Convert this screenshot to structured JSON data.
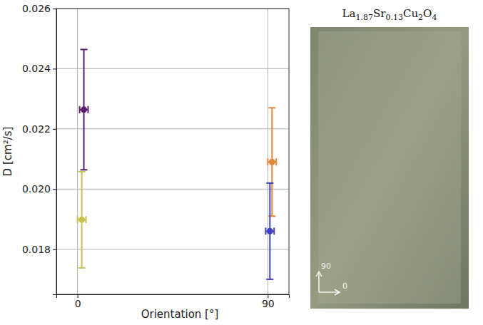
{
  "chart_data": {
    "type": "scatter",
    "x_label": "Orientation [°]",
    "y_label": "D [cm²/s]",
    "x": [
      3,
      2,
      92,
      91
    ],
    "x_errors": [
      2,
      2,
      2,
      2
    ],
    "values": [
      0.02264,
      0.01898,
      0.0209,
      0.0186
    ],
    "errors": [
      0.002,
      0.0016,
      0.0018,
      0.0016
    ],
    "colors": [
      "#5b1f6e",
      "#c9c24f",
      "#e0873a",
      "#3c40c0"
    ],
    "marker": "circle",
    "xlim": [
      -10,
      100
    ],
    "xticks": [
      0,
      90
    ],
    "ylim": [
      0.0165,
      0.026
    ],
    "yticks": [
      {
        "value": 0.018,
        "label": "0.018"
      },
      {
        "value": 0.02,
        "label": "0.020"
      },
      {
        "value": 0.022,
        "label": "0.022"
      },
      {
        "value": 0.024,
        "label": "0.024"
      },
      {
        "value": 0.026,
        "label": "0.026"
      }
    ],
    "grid": true
  },
  "image": {
    "title": "La1.87Sr0.13Cu2O4",
    "arrow_labels": [
      "90",
      "0"
    ]
  }
}
